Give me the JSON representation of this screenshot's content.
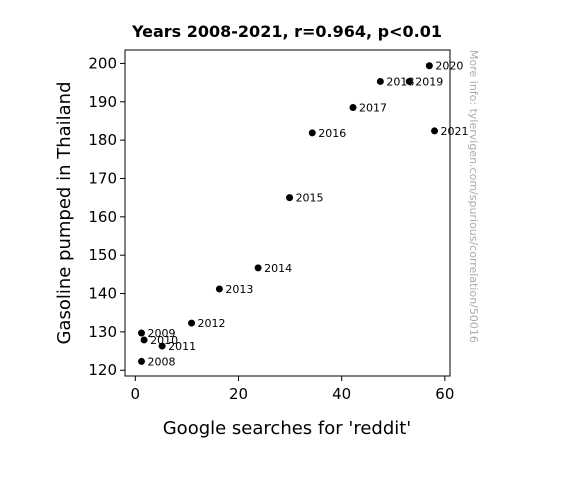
{
  "chart_data": {
    "type": "scatter",
    "title": "Years 2008-2021, r=0.964, p<0.01",
    "xlabel": "Google searches for 'reddit'",
    "ylabel": "Gasoline pumped in Thailand",
    "xlim": [
      -2,
      61
    ],
    "ylim": [
      118.5,
      203.5
    ],
    "xticks": [
      0,
      20,
      40,
      60
    ],
    "yticks": [
      120,
      130,
      140,
      150,
      160,
      170,
      180,
      190,
      200
    ],
    "grid": false,
    "marker_color": "#000000",
    "points": [
      {
        "x": 1.2,
        "y": 122.3,
        "label": "2008"
      },
      {
        "x": 1.2,
        "y": 129.7,
        "label": "2009"
      },
      {
        "x": 1.7,
        "y": 127.9,
        "label": "2010"
      },
      {
        "x": 5.2,
        "y": 126.3,
        "label": "2011"
      },
      {
        "x": 10.9,
        "y": 132.3,
        "label": "2012"
      },
      {
        "x": 16.3,
        "y": 141.2,
        "label": "2013"
      },
      {
        "x": 23.8,
        "y": 146.7,
        "label": "2014"
      },
      {
        "x": 29.9,
        "y": 165.0,
        "label": "2015"
      },
      {
        "x": 34.3,
        "y": 181.9,
        "label": "2016"
      },
      {
        "x": 42.2,
        "y": 188.5,
        "label": "2017"
      },
      {
        "x": 47.5,
        "y": 195.3,
        "label": "2018"
      },
      {
        "x": 53.1,
        "y": 195.3,
        "label": "2019"
      },
      {
        "x": 57.0,
        "y": 199.4,
        "label": "2020"
      },
      {
        "x": 58.0,
        "y": 182.4,
        "label": "2021"
      }
    ]
  },
  "watermark": "More info: tylervigen.com/spurious/correlation/50016"
}
